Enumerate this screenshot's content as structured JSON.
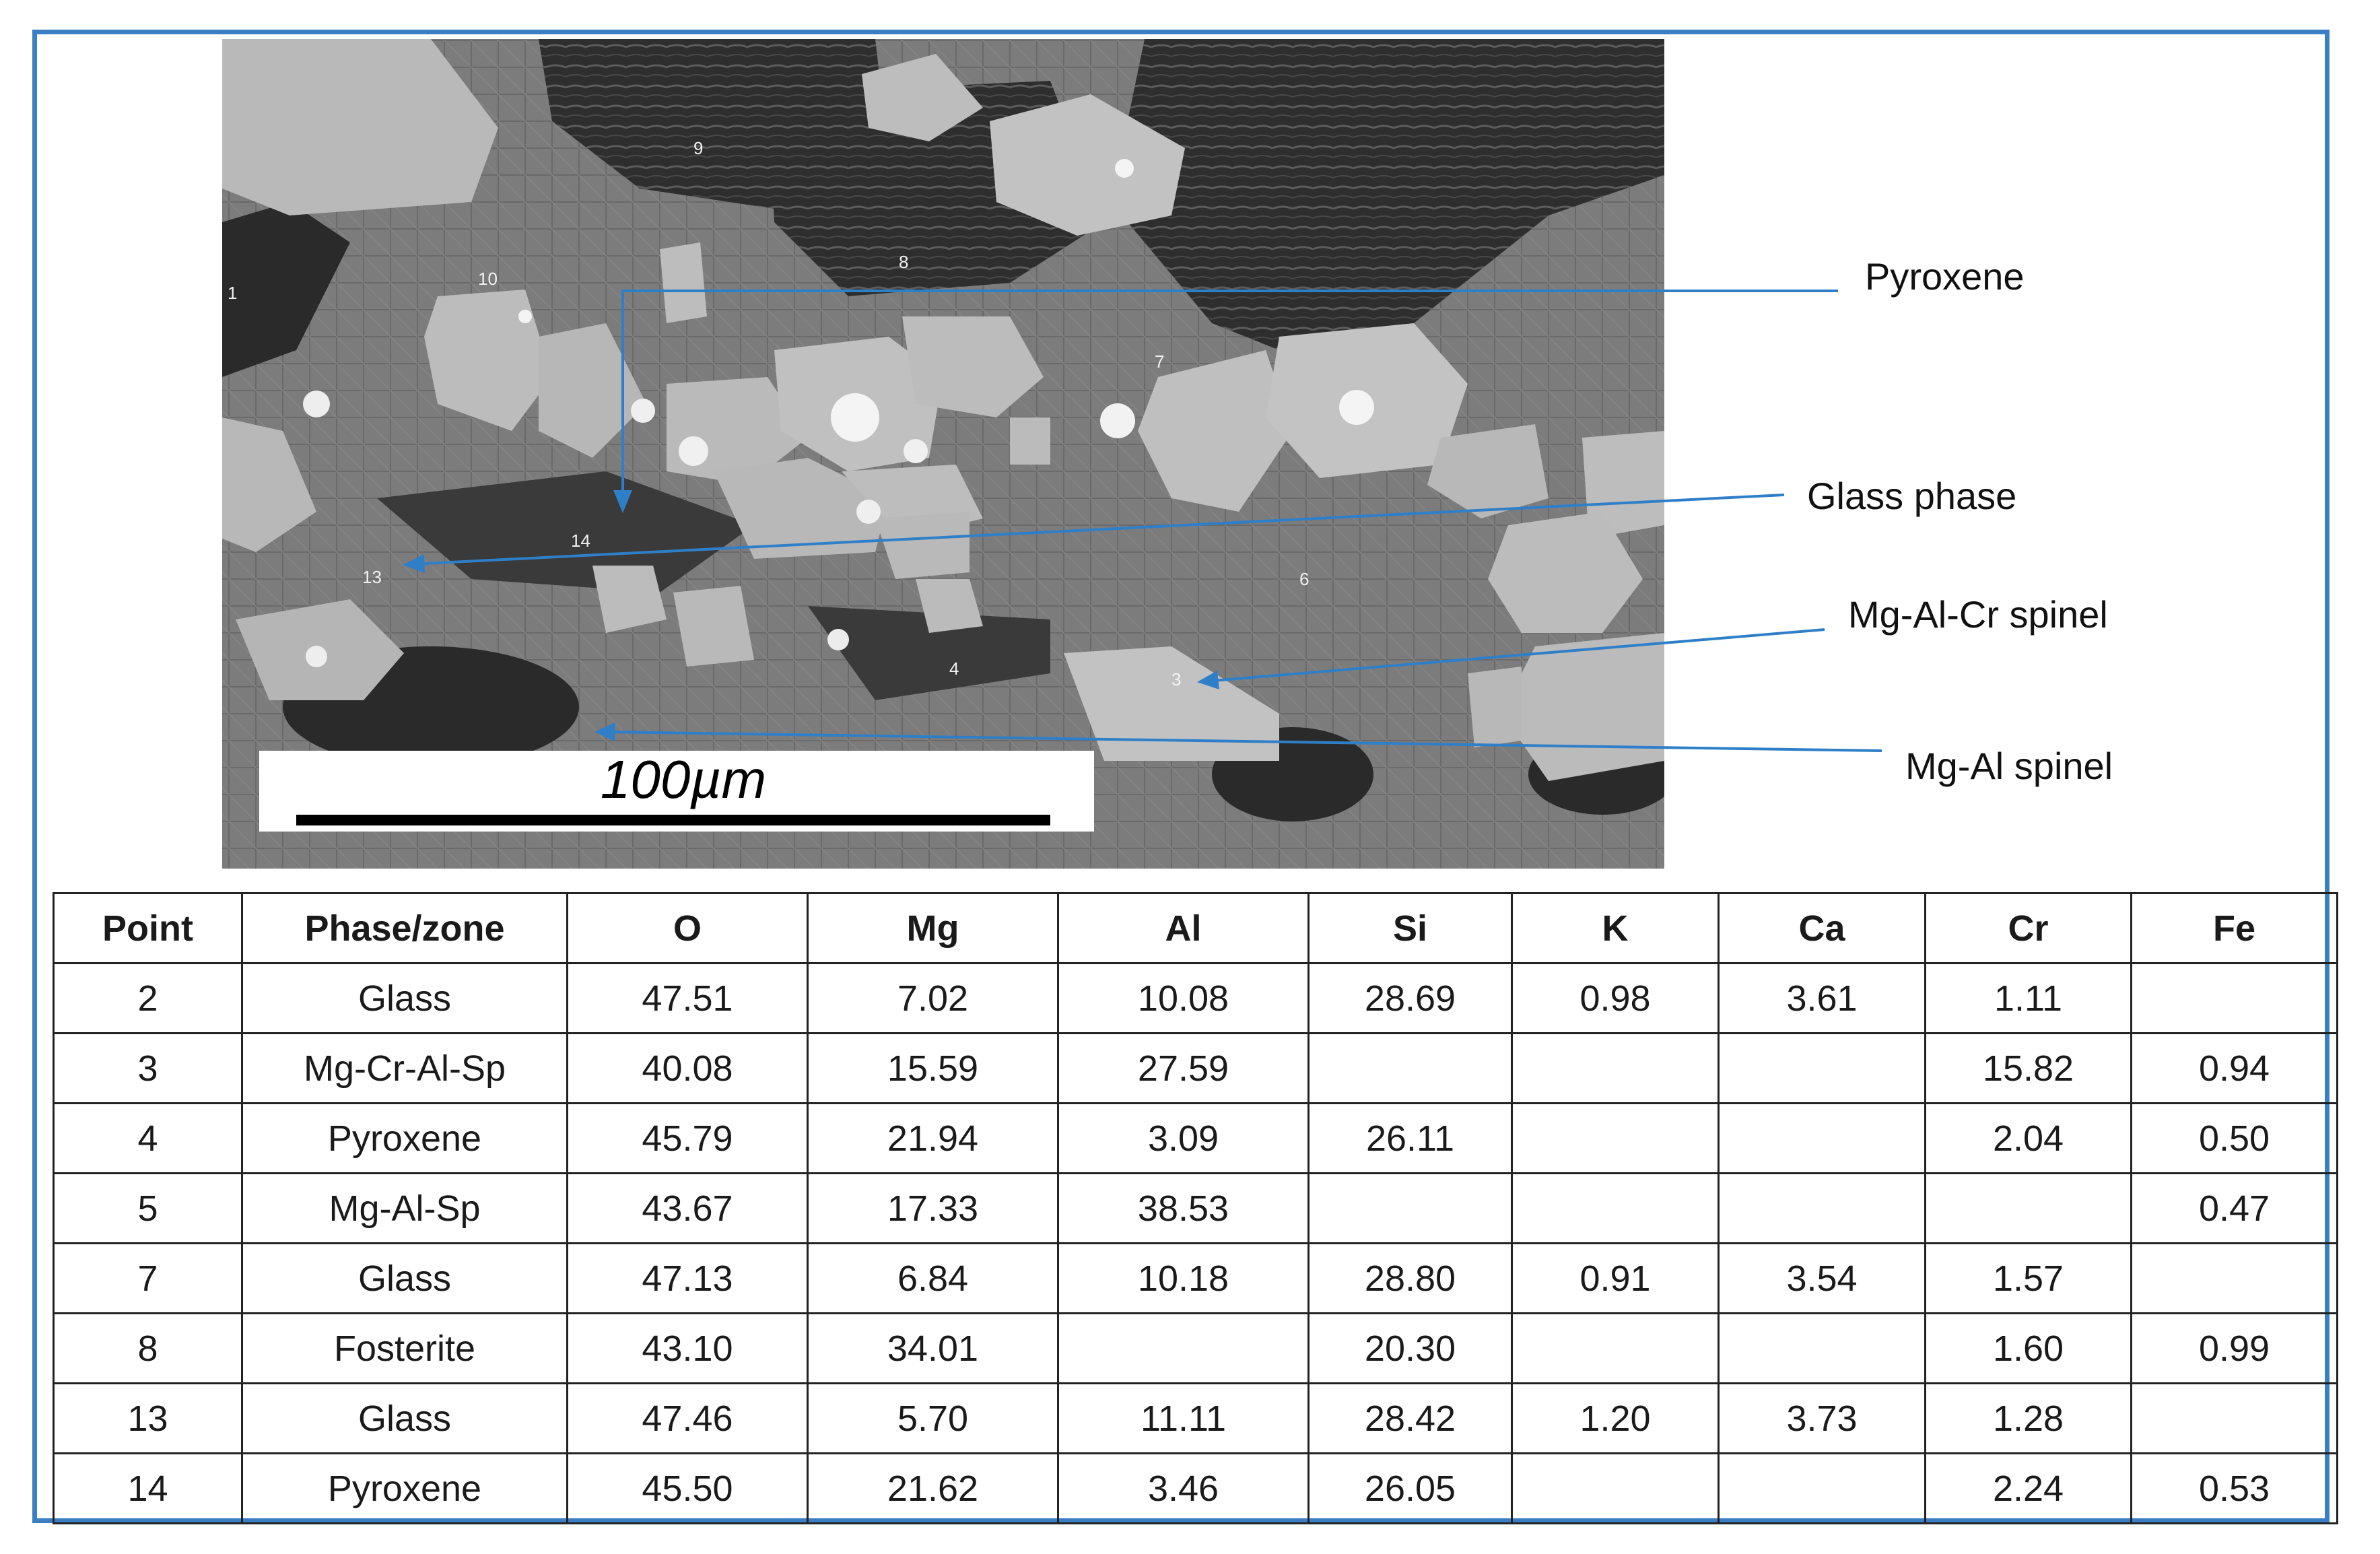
{
  "figure": {
    "labels": {
      "pyroxene": "Pyroxene",
      "glass_phase": "Glass phase",
      "mg_al_cr_spinel": "Mg-Al-Cr spinel",
      "mg_al_spinel": "Mg-Al spinel"
    },
    "scale_bar": "100µm",
    "point_markers": [
      "1",
      "3",
      "4",
      "6",
      "7",
      "8",
      "9",
      "10",
      "13",
      "14"
    ],
    "colors": {
      "frame": "#3a7fc4",
      "arrow": "#2f7fc8"
    }
  },
  "table": {
    "headers": [
      "Point",
      "Phase/zone",
      "O",
      "Mg",
      "Al",
      "Si",
      "K",
      "Ca",
      "Cr",
      "Fe"
    ],
    "rows": [
      [
        "2",
        "Glass",
        "47.51",
        "7.02",
        "10.08",
        "28.69",
        "0.98",
        "3.61",
        "1.11",
        ""
      ],
      [
        "3",
        "Mg-Cr-Al-Sp",
        "40.08",
        "15.59",
        "27.59",
        "",
        "",
        "",
        "15.82",
        "0.94"
      ],
      [
        "4",
        "Pyroxene",
        "45.79",
        "21.94",
        "3.09",
        "26.11",
        "",
        "",
        "2.04",
        "0.50"
      ],
      [
        "5",
        "Mg-Al-Sp",
        "43.67",
        "17.33",
        "38.53",
        "",
        "",
        "",
        "",
        "0.47"
      ],
      [
        "7",
        "Glass",
        "47.13",
        "6.84",
        "10.18",
        "28.80",
        "0.91",
        "3.54",
        "1.57",
        ""
      ],
      [
        "8",
        "Fosterite",
        "43.10",
        "34.01",
        "",
        "20.30",
        "",
        "",
        "1.60",
        "0.99"
      ],
      [
        "13",
        "Glass",
        "47.46",
        "5.70",
        "11.11",
        "28.42",
        "1.20",
        "3.73",
        "1.28",
        ""
      ],
      [
        "14",
        "Pyroxene",
        "45.50",
        "21.62",
        "3.46",
        "26.05",
        "",
        "",
        "2.24",
        "0.53"
      ]
    ]
  }
}
